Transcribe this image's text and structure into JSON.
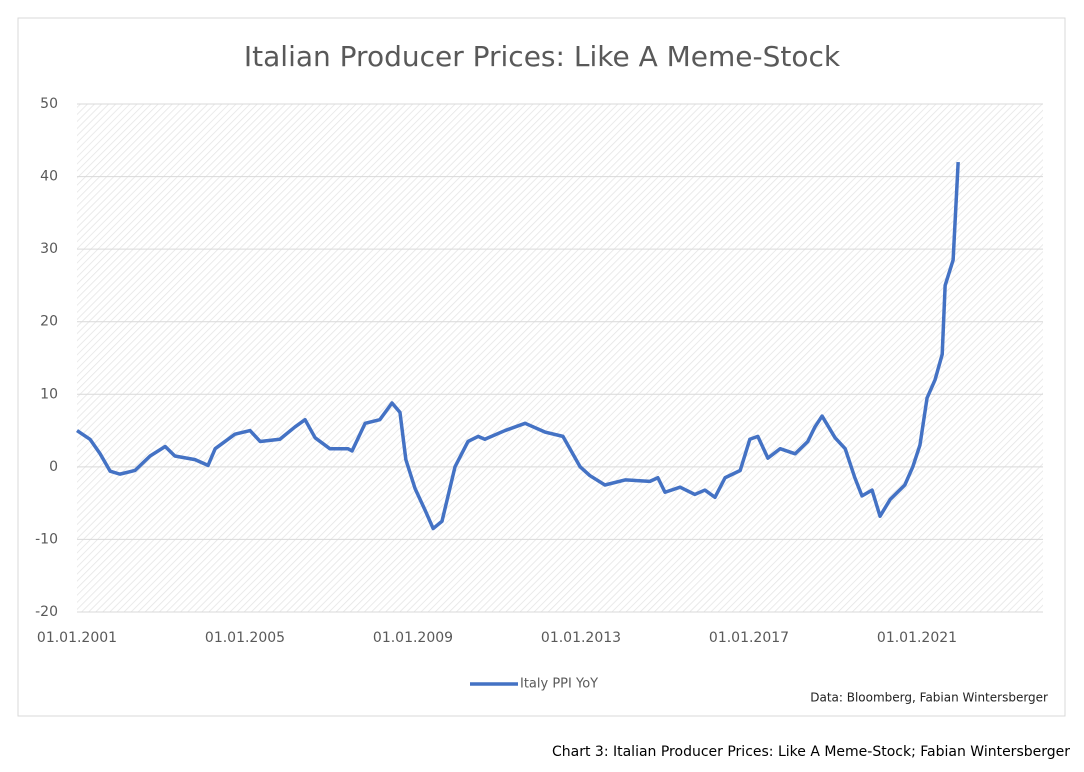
{
  "chart_data": {
    "type": "line",
    "title": "Italian Producer Prices: Like A Meme-Stock",
    "source": "Data: Bloomberg, Fabian Wintersberger",
    "caption": "Chart 3: Italian Producer Prices: Like A Meme-Stock; Fabian Wintersberger",
    "x": [
      2001.0,
      2001.31,
      2001.55,
      2001.79,
      2002.02,
      2002.38,
      2002.74,
      2003.1,
      2003.33,
      2003.81,
      2004.12,
      2004.29,
      2004.76,
      2005.12,
      2005.36,
      2005.83,
      2006.19,
      2006.43,
      2006.67,
      2007.02,
      2007.45,
      2007.55,
      2007.86,
      2008.21,
      2008.5,
      2008.69,
      2008.83,
      2009.05,
      2009.29,
      2009.48,
      2009.69,
      2010.0,
      2010.31,
      2010.55,
      2010.71,
      2011.19,
      2011.67,
      2012.14,
      2012.57,
      2012.98,
      2013.21,
      2013.57,
      2014.05,
      2014.64,
      2014.83,
      2015.0,
      2015.36,
      2015.71,
      2015.95,
      2016.19,
      2016.43,
      2016.79,
      2017.02,
      2017.21,
      2017.45,
      2017.74,
      2018.1,
      2018.4,
      2018.57,
      2018.74,
      2019.05,
      2019.29,
      2019.52,
      2019.69,
      2019.93,
      2020.12,
      2020.36,
      2020.71,
      2020.9,
      2021.07,
      2021.24,
      2021.43,
      2021.6,
      2021.67,
      2021.86,
      2021.98
    ],
    "series": [
      {
        "name": "Italy PPI YoY",
        "color": "#4472c4",
        "values": [
          5,
          3.8,
          1.8,
          -0.6,
          -1,
          -0.5,
          1.5,
          2.8,
          1.5,
          1,
          0.2,
          2.5,
          4.5,
          5,
          3.5,
          3.8,
          5.5,
          6.5,
          4,
          2.5,
          2.5,
          2.2,
          6,
          6.5,
          8.8,
          7.5,
          1,
          -3,
          -6,
          -8.5,
          -7.5,
          0,
          3.5,
          4.2,
          3.8,
          5,
          6,
          4.8,
          4.2,
          0,
          -1.2,
          -2.5,
          -1.8,
          -2,
          -1.5,
          -3.5,
          -2.8,
          -3.8,
          -3.2,
          -4.2,
          -1.5,
          -0.5,
          3.8,
          4.2,
          1.2,
          2.5,
          1.8,
          3.5,
          5.5,
          7,
          4,
          2.5,
          -1.5,
          -4,
          -3.2,
          -6.8,
          -4.5,
          -2.5,
          0,
          3,
          9.5,
          12,
          15.5,
          25,
          28.5,
          42
        ]
      }
    ],
    "xlim": [
      2001,
      2024
    ],
    "xticks": [
      {
        "value": 2001,
        "label": "01.01.2001"
      },
      {
        "value": 2005,
        "label": "01.01.2005"
      },
      {
        "value": 2009,
        "label": "01.01.2009"
      },
      {
        "value": 2013,
        "label": "01.01.2013"
      },
      {
        "value": 2017,
        "label": "01.01.2017"
      },
      {
        "value": 2021,
        "label": "01.01.2021"
      }
    ],
    "ylim": [
      -20,
      50
    ],
    "yticks": [
      -20,
      -10,
      0,
      10,
      20,
      30,
      40,
      50
    ],
    "grid": true,
    "legend": "bottom"
  }
}
